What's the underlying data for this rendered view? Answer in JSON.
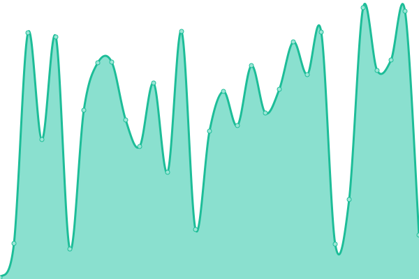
{
  "chart_data": {
    "type": "area",
    "x": [
      0,
      1,
      2,
      3,
      4,
      5,
      6,
      7,
      8,
      9,
      10,
      11,
      12,
      13,
      14,
      15,
      16,
      17,
      18,
      19,
      20,
      21,
      22,
      23,
      24,
      25,
      26,
      27,
      28,
      29,
      30
    ],
    "values": [
      2,
      51,
      353,
      200,
      347,
      43,
      242,
      310,
      311,
      228,
      190,
      281,
      153,
      355,
      71,
      212,
      269,
      220,
      306,
      238,
      272,
      340,
      293,
      354,
      50,
      114,
      389,
      299,
      314,
      384,
      63
    ],
    "ylim": [
      0,
      400
    ],
    "xlim": [
      0,
      30
    ],
    "grid": false,
    "axes": false,
    "curve": "smooth",
    "colors": {
      "line": "#1dbd98",
      "fill": "#8ae0cf",
      "point_fill": "#9be6d6"
    }
  }
}
